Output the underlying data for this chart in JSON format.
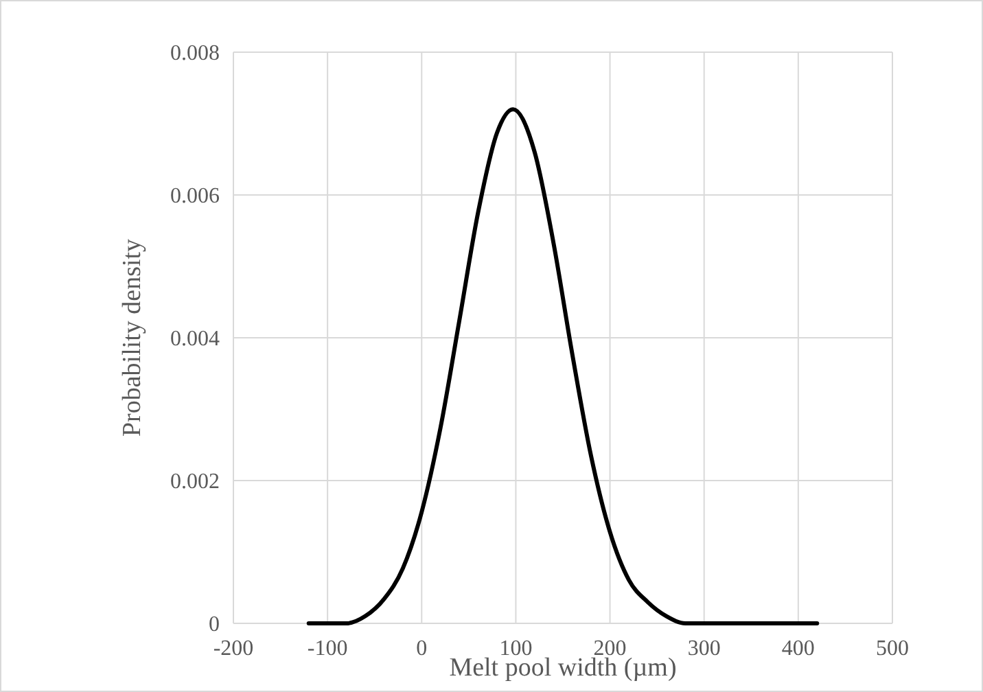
{
  "chart_data": {
    "type": "line",
    "xlabel": "Melt pool width (µm)",
    "ylabel": "Probability density",
    "x": [
      -120,
      -100,
      -80,
      -60,
      -40,
      -20,
      0,
      20,
      40,
      60,
      80,
      97,
      120,
      140,
      160,
      180,
      200,
      220,
      240,
      260,
      280,
      300,
      340,
      380,
      420
    ],
    "series": [
      {
        "color": "#000000",
        "values": [
          0,
          0,
          0,
          0.0001,
          0.00034,
          0.00077,
          0.00156,
          0.00274,
          0.00424,
          0.00576,
          0.00687,
          0.0072,
          0.0066,
          0.00533,
          0.00377,
          0.00234,
          0.00128,
          0.00061,
          0.0003,
          0.0001,
          0,
          0,
          0,
          0,
          0
        ]
      }
    ],
    "xlim": [
      -200,
      500
    ],
    "xticks": [
      -200,
      -100,
      0,
      100,
      200,
      300,
      400,
      500
    ],
    "ylim": [
      0,
      0.008
    ],
    "yticks": [
      0,
      0.002,
      0.004,
      0.006,
      0.008
    ],
    "grid": true,
    "marker": "none",
    "line_style": "solid"
  }
}
